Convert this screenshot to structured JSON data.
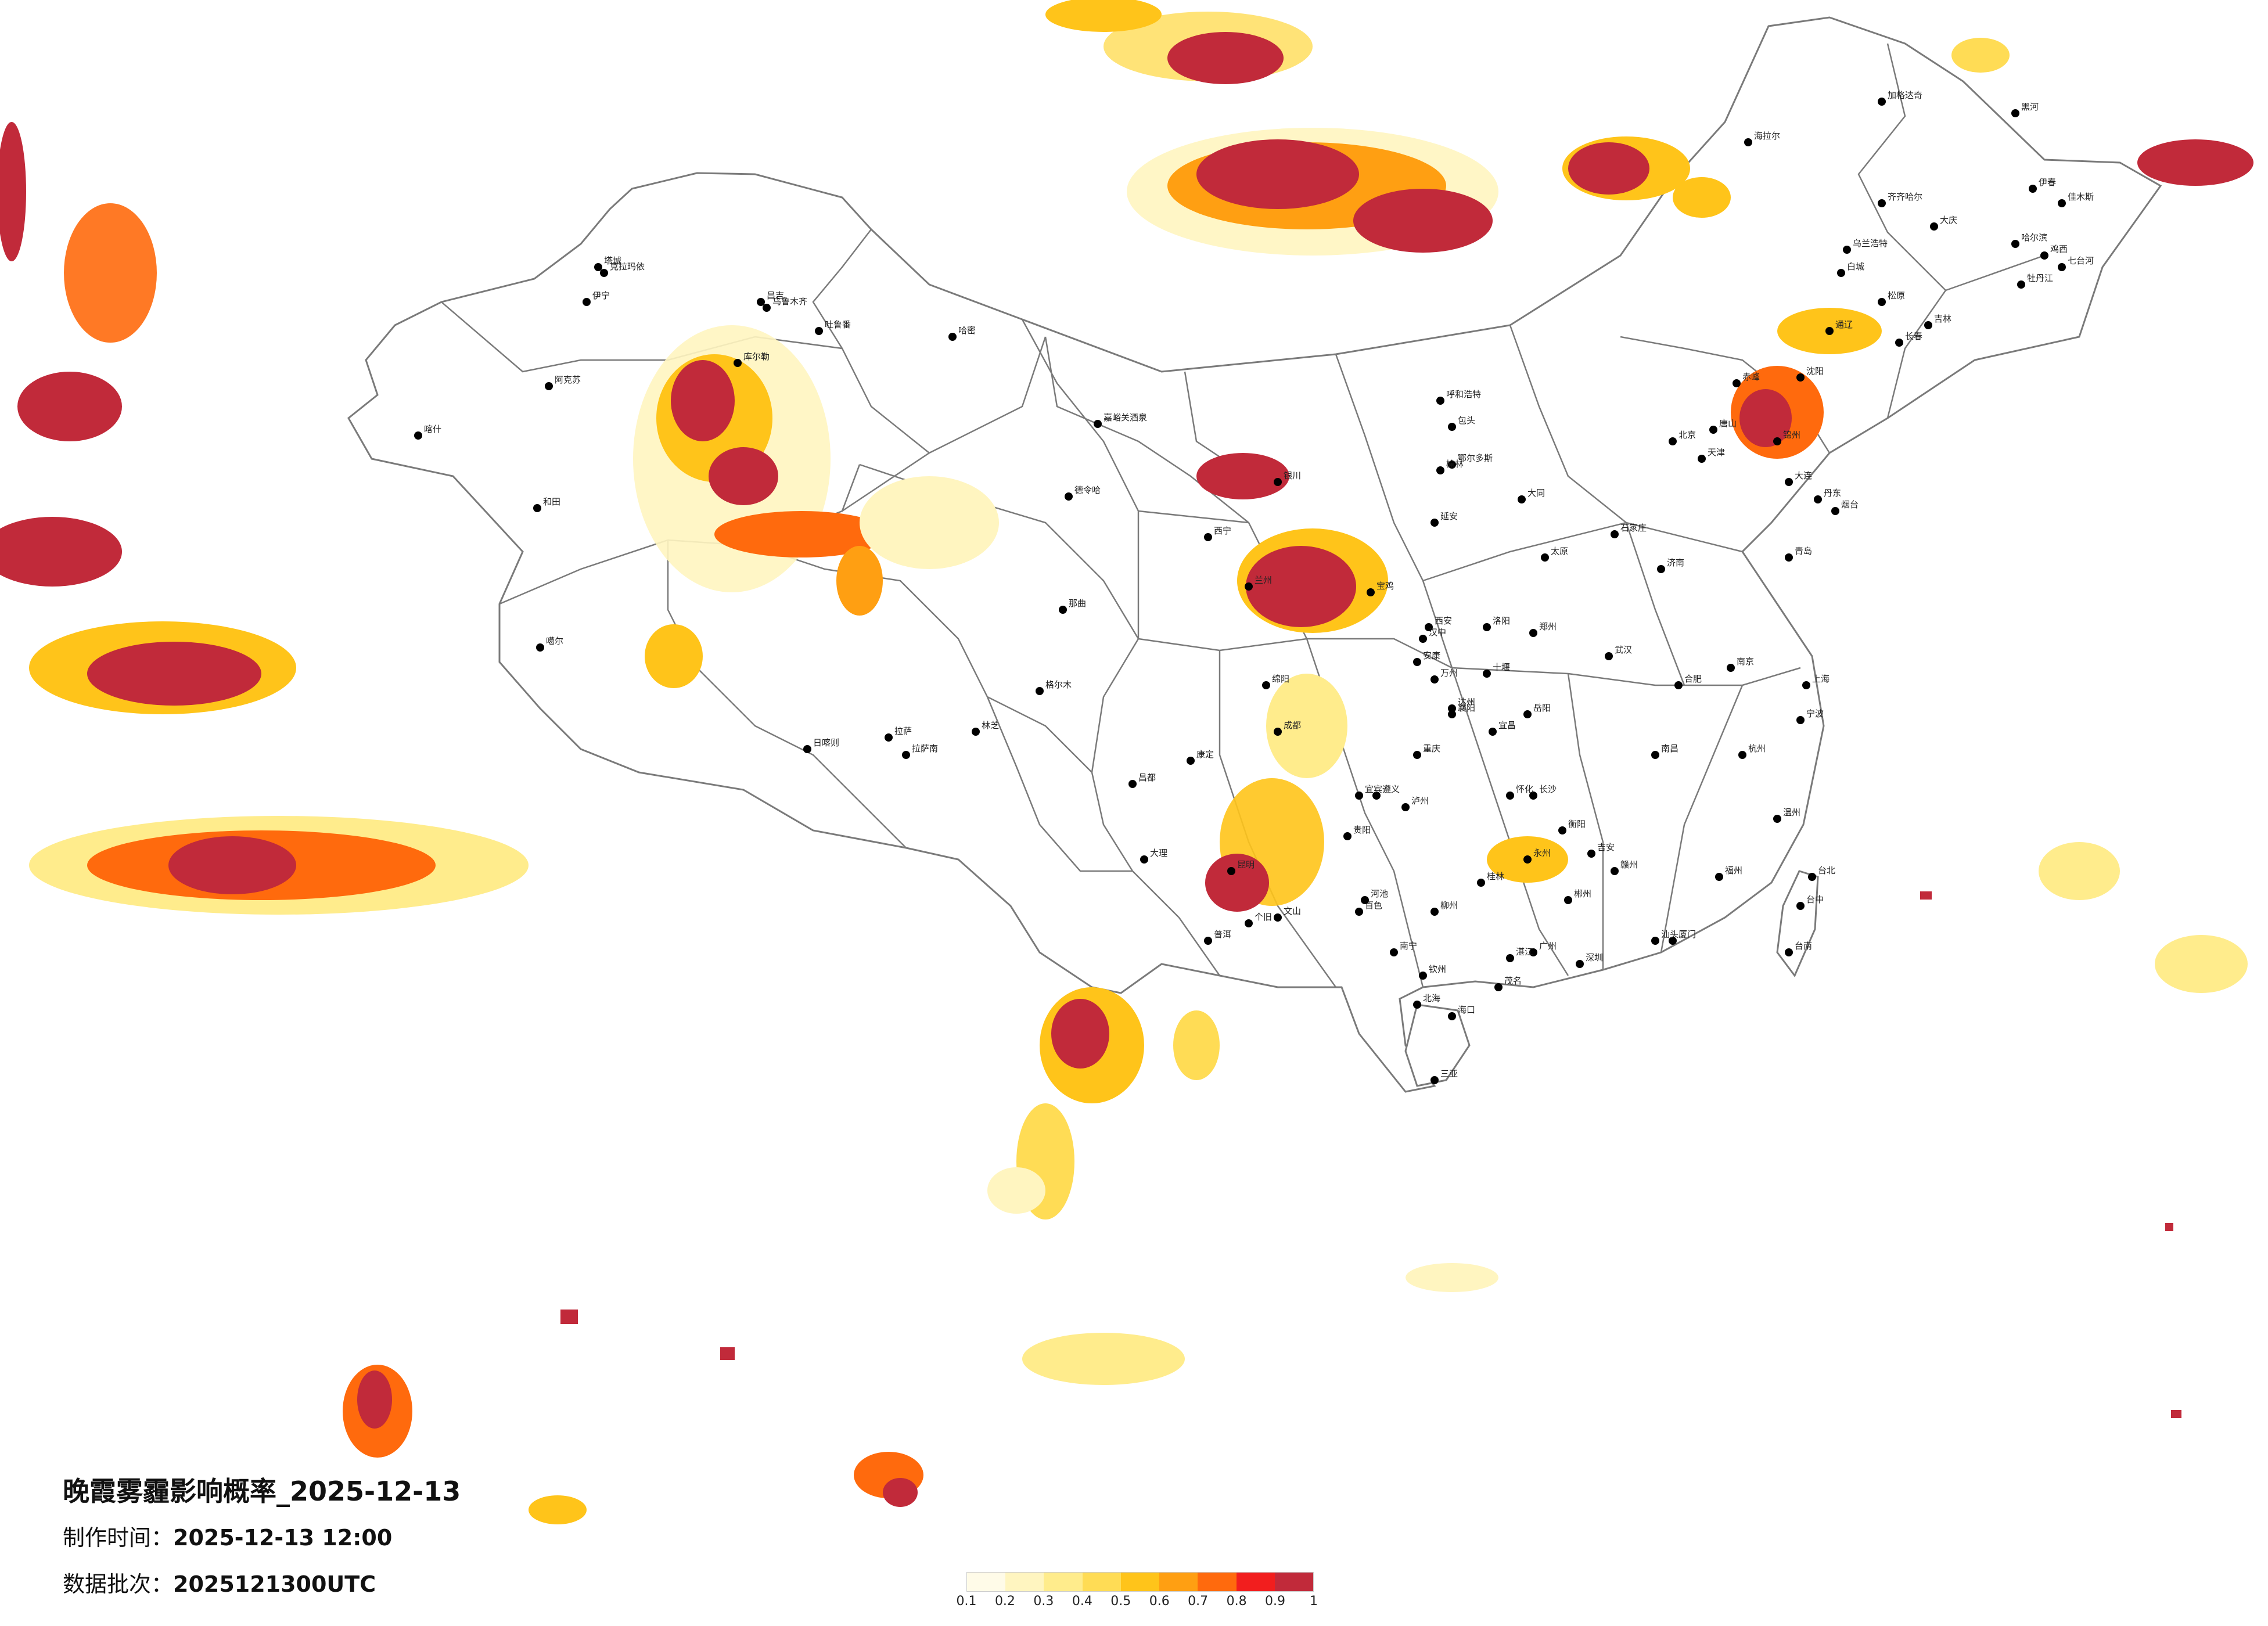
{
  "title": "晚霞雾霾影响概率_2025-12-13",
  "made_time": {
    "label": "制作时间：",
    "value": "2025-12-13 12:00"
  },
  "data_batch": {
    "label": "数据批次：",
    "value": "2025121300UTC"
  },
  "legend": {
    "labels": [
      "0.1",
      "0.2",
      "0.3",
      "0.4",
      "0.5",
      "0.6",
      "0.7",
      "0.8",
      "0.9",
      "1"
    ],
    "colors": [
      "#fffbe8",
      "#fff5c0",
      "#ffec8c",
      "#ffdc55",
      "#ffc41a",
      "#ff9f12",
      "#ff6a0d",
      "#f21e1e",
      "#c12a3a"
    ]
  },
  "cities": [
    "克拉玛依",
    "伊宁",
    "昌吉",
    "乌鲁木齐",
    "吐鲁番",
    "哈密",
    "阿克苏",
    "喀什",
    "和田",
    "库尔勒",
    "塔城",
    "嘉峪关酒泉",
    "德令哈",
    "格尔木",
    "噶尔",
    "日喀则",
    "拉萨",
    "林芝",
    "那曲",
    "昌都",
    "西宁",
    "兰州",
    "银川",
    "呼和浩特",
    "包头",
    "鄂尔多斯",
    "大同",
    "太原",
    "石家庄",
    "北京",
    "天津",
    "唐山",
    "沈阳",
    "大连",
    "长春",
    "吉林",
    "哈尔滨",
    "齐齐哈尔",
    "大庆",
    "牡丹江",
    "佳木斯",
    "海拉尔",
    "加格达奇",
    "黑河",
    "伊春",
    "鸡西",
    "七台河",
    "通辽",
    "赤峰",
    "锦州",
    "丹东",
    "乌兰浩特",
    "白城",
    "松原",
    "济南",
    "青岛",
    "烟台",
    "郑州",
    "洛阳",
    "西安",
    "宝鸡",
    "延安",
    "榆林",
    "合肥",
    "南京",
    "上海",
    "杭州",
    "宁波",
    "温州",
    "福州",
    "厦门",
    "台北",
    "台中",
    "台南",
    "南昌",
    "武汉",
    "长沙",
    "岳阳",
    "广州",
    "深圳",
    "汕头",
    "海口",
    "三亚",
    "南宁",
    "桂林",
    "柳州",
    "贵阳",
    "遵义",
    "昆明",
    "大理",
    "成都",
    "绵阳",
    "重庆",
    "万州",
    "宜宾",
    "达州",
    "康定",
    "拉萨南",
    "个旧",
    "文山",
    "汉中",
    "安康",
    "十堰",
    "襄阳",
    "宜昌",
    "赣州",
    "吉安",
    "衡阳",
    "郴州",
    "永州",
    "怀化",
    "湛江",
    "茂名",
    "钦州",
    "北海",
    "百色",
    "河池",
    "泸州",
    "普洱"
  ],
  "map_colors": {
    "land": "#ffffff",
    "border": "#7a7a7a",
    "city_dot": "#000000"
  }
}
